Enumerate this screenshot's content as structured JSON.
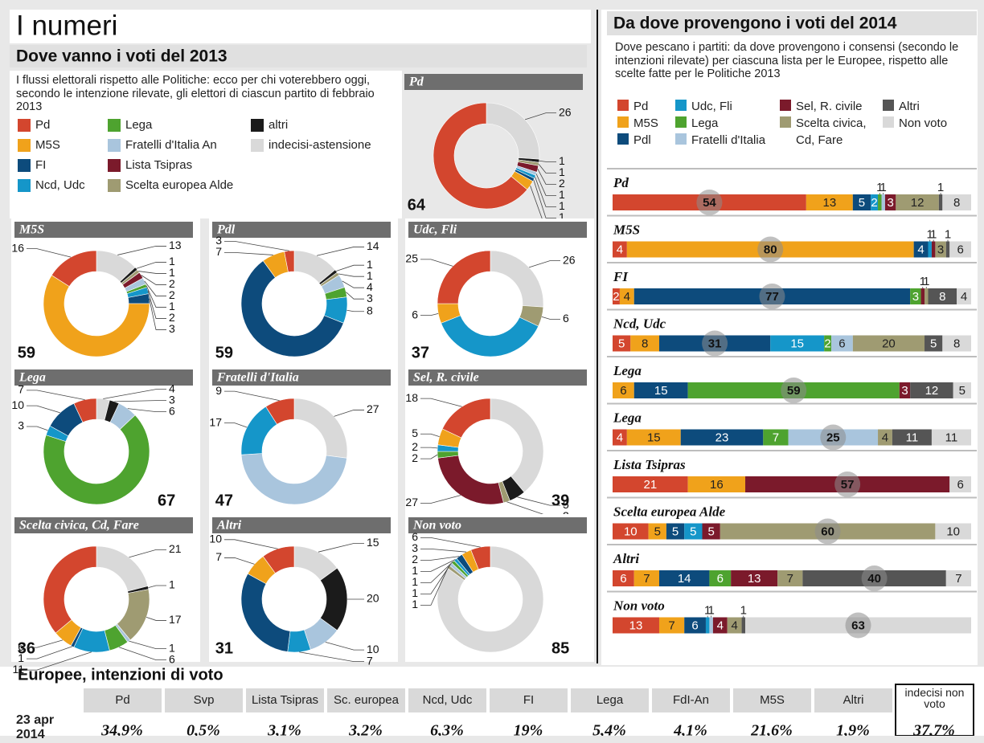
{
  "header": {
    "title": "I numeri"
  },
  "chart_data": [
    {
      "type": "donut",
      "title": "Dove vanno i voti del 2013",
      "subtitle": "I flussi elettorali rispetto alle Politiche: ecco per chi voterebbero oggi, secondo le intenzione rilevate, gli elettori di ciascun partito di febbraio 2013",
      "categories": [
        "Pd",
        "M5S",
        "Pdl",
        "Udc, Fli",
        "Lega",
        "Fratelli d'Italia",
        "Sel, R. civile",
        "Scelta civica, Cd, Fare",
        "Altri",
        "Non voto"
      ],
      "series": [
        {
          "name": "Pd",
          "color": "#d3462e",
          "values": [
            64,
            16,
            3,
            25,
            7,
            9,
            18,
            36,
            10,
            6
          ]
        },
        {
          "name": "M5S",
          "color": "#f0a21b",
          "values": [
            3,
            59,
            7,
            6,
            null,
            null,
            5,
            6,
            7,
            3
          ]
        },
        {
          "name": "FI",
          "color": "#0d4b7c",
          "values": [
            1,
            3,
            59,
            null,
            10,
            null,
            null,
            1,
            31,
            2
          ]
        },
        {
          "name": "Ncd, Udc",
          "color": "#1596c9",
          "values": [
            1,
            2,
            8,
            37,
            3,
            17,
            2,
            11,
            7,
            1
          ]
        },
        {
          "name": "Lega",
          "color": "#4ea32f",
          "values": [
            null,
            1,
            3,
            null,
            67,
            null,
            2,
            6,
            null,
            1
          ]
        },
        {
          "name": "Fratelli d'Italia An",
          "color": "#a9c5dd",
          "values": [
            1,
            2,
            4,
            null,
            6,
            47,
            null,
            1,
            10,
            1
          ]
        },
        {
          "name": "Lista Tsipras",
          "color": "#7b1a2b",
          "values": [
            2,
            2,
            null,
            null,
            null,
            null,
            27,
            null,
            null,
            null
          ]
        },
        {
          "name": "Scelta europea Alde",
          "color": "#9f9b72",
          "values": [
            1,
            1,
            1,
            6,
            null,
            null,
            2,
            17,
            null,
            1
          ]
        },
        {
          "name": "altri",
          "color": "#1b1b1b",
          "values": [
            1,
            1,
            1,
            null,
            3,
            null,
            5,
            1,
            20,
            null
          ]
        },
        {
          "name": "indecisi-astensione",
          "color": "#d9d9d9",
          "values": [
            26,
            13,
            14,
            26,
            4,
            27,
            39,
            21,
            15,
            85
          ]
        }
      ]
    },
    {
      "type": "stacked-bar",
      "title": "Da dove provengono i voti del 2014",
      "subtitle": "Dove pescano i partiti: da dove provengono i consensi (secondo le intenzioni rilevate) per ciascuna lista per le Europee, rispetto alle scelte fatte per le Politiche 2013",
      "categories": [
        "Pd",
        "M5S",
        "FI",
        "Ncd, Udc",
        "Lega",
        "Lega",
        "Lista Tsipras",
        "Scelta europea Alde",
        "Altri",
        "Non voto"
      ],
      "series": [
        {
          "name": "Pd",
          "color": "#d3462e",
          "values": [
            54,
            4,
            2,
            5,
            null,
            4,
            21,
            10,
            6,
            13
          ]
        },
        {
          "name": "M5S",
          "color": "#f0a21b",
          "values": [
            13,
            80,
            4,
            8,
            6,
            15,
            16,
            5,
            7,
            7
          ]
        },
        {
          "name": "Pdl",
          "color": "#0d4b7c",
          "values": [
            5,
            4,
            77,
            31,
            15,
            23,
            null,
            5,
            14,
            6
          ]
        },
        {
          "name": "Udc, Fli",
          "color": "#1596c9",
          "values": [
            2,
            1,
            null,
            15,
            null,
            null,
            null,
            5,
            null,
            1
          ]
        },
        {
          "name": "Lega",
          "color": "#4ea32f",
          "values": [
            1,
            null,
            3,
            2,
            59,
            7,
            null,
            null,
            6,
            null
          ]
        },
        {
          "name": "Fratelli d'Italia",
          "color": "#a9c5dd",
          "values": [
            1,
            null,
            null,
            6,
            null,
            25,
            null,
            null,
            null,
            1
          ]
        },
        {
          "name": "Sel, R. civile",
          "color": "#7b1a2b",
          "values": [
            3,
            1,
            1,
            null,
            3,
            null,
            57,
            5,
            13,
            4
          ]
        },
        {
          "name": "Scelta civica, Cd, Fare",
          "color": "#9f9b72",
          "values": [
            12,
            3,
            1,
            20,
            null,
            4,
            null,
            60,
            7,
            4
          ]
        },
        {
          "name": "Altri",
          "color": "#555555",
          "values": [
            1,
            1,
            8,
            5,
            12,
            11,
            null,
            null,
            40,
            1
          ]
        },
        {
          "name": "Non voto",
          "color": "#d9d9d9",
          "values": [
            8,
            6,
            4,
            8,
            5,
            11,
            6,
            10,
            7,
            63
          ]
        }
      ]
    }
  ],
  "table": {
    "title": "Europee, intenzioni di voto",
    "columns": [
      "Pd",
      "Svp",
      "Lista Tsipras",
      "Sc. europea",
      "Ncd, Udc",
      "FI",
      "Lega",
      "FdI-An",
      "M5S",
      "Altri",
      "indecisi non voto"
    ],
    "rows": [
      {
        "label": "23 apr 2014",
        "cells": [
          "34,9%",
          "0,5%",
          "3,1%",
          "3,2%",
          "6,3%",
          "19%",
          "5,4%",
          "4,1%",
          "21,6%",
          "1,9%",
          "37,7%"
        ]
      }
    ]
  }
}
